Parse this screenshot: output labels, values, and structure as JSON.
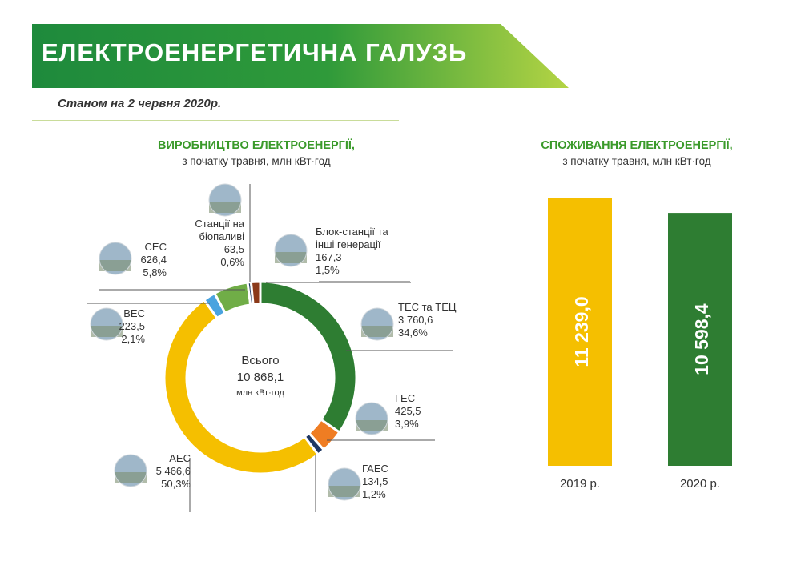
{
  "header": {
    "title": "ЕЛЕКТРОЕНЕРГЕТИЧНА ГАЛУЗЬ",
    "date": "Станом на 2 червня 2020р."
  },
  "production": {
    "title": "ВИРОБНИЦТВО ЕЛЕКТРОЕНЕРГІЇ,",
    "subtitle": "з початку травня, млн кВт·год"
  },
  "consumption": {
    "title": "СПОЖИВАННЯ ЕЛЕКТРОЕНЕРГІЇ,",
    "subtitle": "з початку травня, млн кВт·год"
  },
  "colors": {
    "banner_dark": "#1e8a3c",
    "banner_light": "#b4d444",
    "green": "#2e7d32",
    "yellow": "#f5bf00",
    "orange": "#ef7d23",
    "navy": "#1f3864",
    "blue": "#4aa3df",
    "light_green": "#70ad47",
    "brown": "#8b3a1a"
  },
  "chart_data": [
    {
      "type": "pie",
      "center_label": [
        "Всього",
        "10 868,1",
        "млн кВт·год"
      ],
      "slices": [
        {
          "name": "ТЕС та ТЕЦ",
          "value": 3760.6,
          "value_label": "3 760,6",
          "percent": "34,6%",
          "color": "#2e7d32",
          "icon": "thermal-plant-icon"
        },
        {
          "name": "ГЕС",
          "value": 425.5,
          "value_label": "425,5",
          "percent": "3,9%",
          "color": "#ef7d23",
          "icon": "hydro-plant-icon"
        },
        {
          "name": "ГАЕС",
          "value": 134.5,
          "value_label": "134,5",
          "percent": "1,2%",
          "color": "#1f3864",
          "icon": "pumped-storage-icon"
        },
        {
          "name": "АЕС",
          "value": 5466.6,
          "value_label": "5 466,6",
          "percent": "50,3%",
          "color": "#f5bf00",
          "icon": "nuclear-plant-icon"
        },
        {
          "name": "ВЕС",
          "value": 223.5,
          "value_label": "223,5",
          "percent": "2,1%",
          "color": "#4aa3df",
          "icon": "wind-turbine-icon"
        },
        {
          "name": "СЕС",
          "value": 626.4,
          "value_label": "626,4",
          "percent": "5,8%",
          "color": "#70ad47",
          "icon": "solar-panel-icon"
        },
        {
          "name": "Станції на біопаливі",
          "name_lines": [
            "Станції на",
            "біопаливі"
          ],
          "value": 63.5,
          "value_label": "63,5",
          "percent": "0,6%",
          "color": "#1f3864",
          "icon": "biofuel-plant-icon"
        },
        {
          "name": "Блок-станції та інші генерації",
          "name_lines": [
            "Блок-станції та",
            "інші генерації"
          ],
          "value": 167.3,
          "value_label": "167,3",
          "percent": "1,5%",
          "color": "#8b3a1a",
          "icon": "block-station-icon"
        }
      ]
    },
    {
      "type": "bar",
      "categories": [
        "2019 р.",
        "2020 р."
      ],
      "values": [
        11239.0,
        10598.4
      ],
      "value_labels": [
        "11 239,0",
        "10 598,4"
      ],
      "colors": [
        "#f5bf00",
        "#2e7d32"
      ]
    }
  ]
}
